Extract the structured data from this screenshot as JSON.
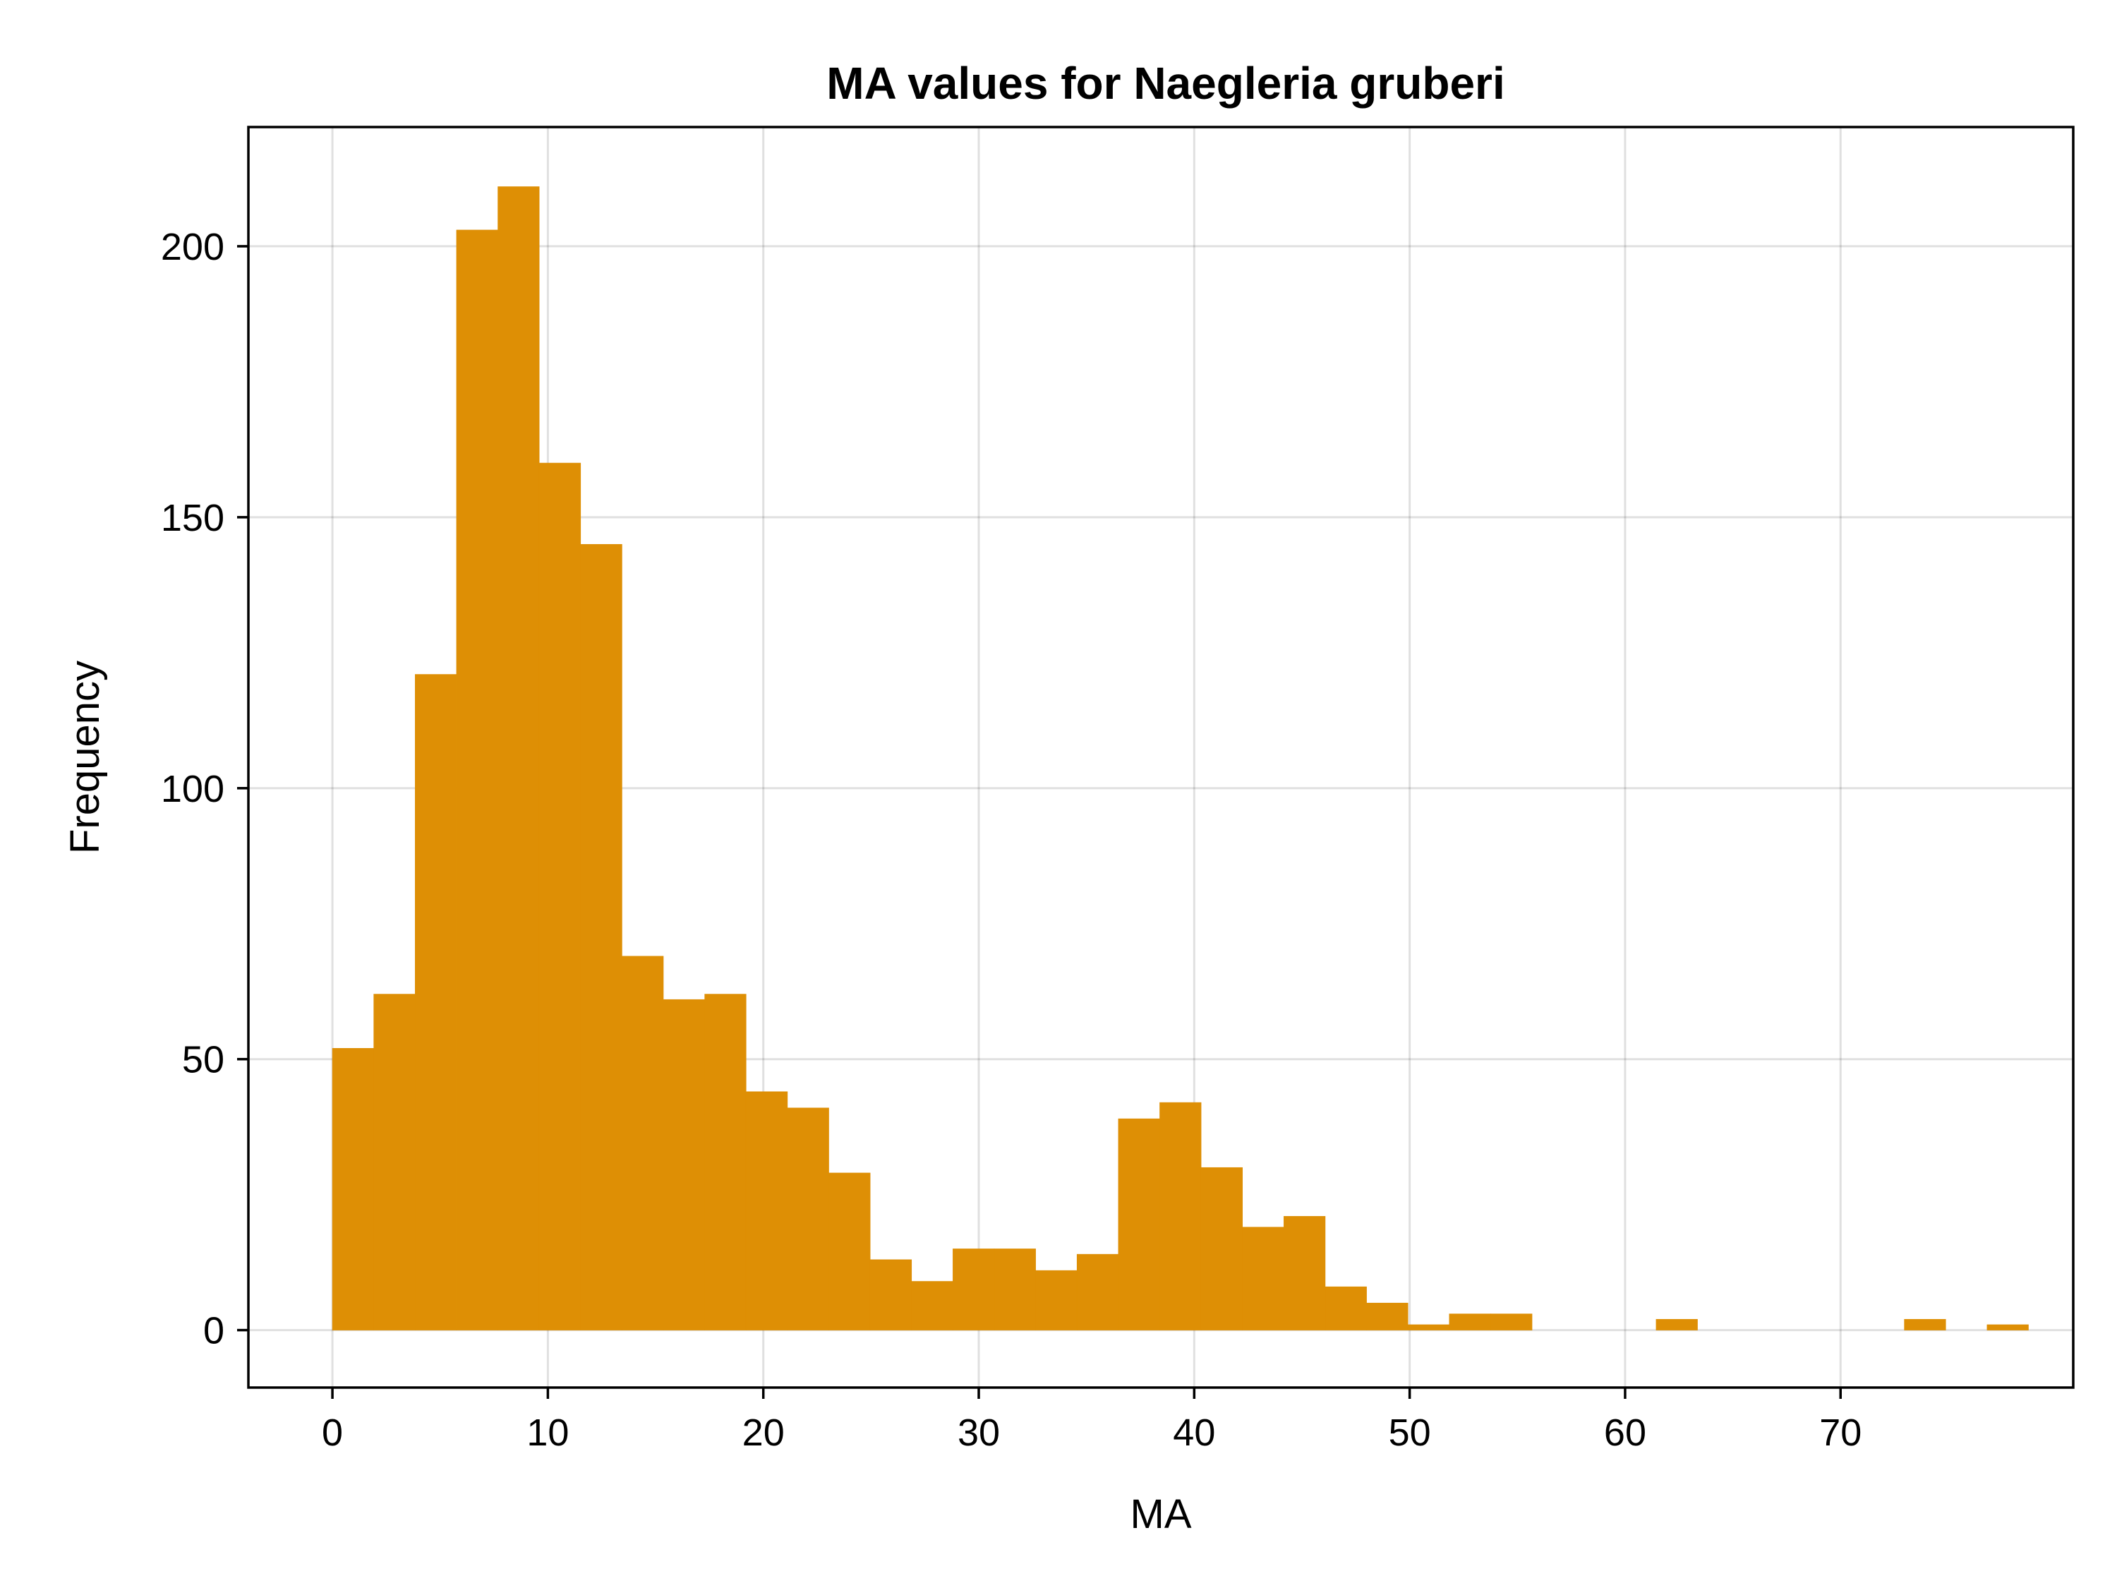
{
  "chart_data": {
    "type": "bar",
    "title": "MA values for Naegleria gruberi",
    "xlabel": "MA",
    "ylabel": "Frequency",
    "xlim": [
      -3.9,
      80.8
    ],
    "ylim": [
      -10.6,
      222
    ],
    "xticks": [
      0,
      10,
      20,
      30,
      40,
      50,
      60,
      70
    ],
    "yticks": [
      0,
      50,
      100,
      150,
      200
    ],
    "grid": true,
    "color": "#DE8F05",
    "bin_width": 1.92,
    "bin_start": 0,
    "values": [
      52,
      62,
      121,
      203,
      211,
      160,
      145,
      69,
      61,
      62,
      44,
      41,
      29,
      13,
      9,
      15,
      15,
      11,
      14,
      39,
      42,
      30,
      19,
      21,
      8,
      5,
      1,
      3,
      3,
      0,
      0,
      0,
      2,
      0,
      0,
      0,
      0,
      0,
      2,
      0,
      1
    ]
  }
}
